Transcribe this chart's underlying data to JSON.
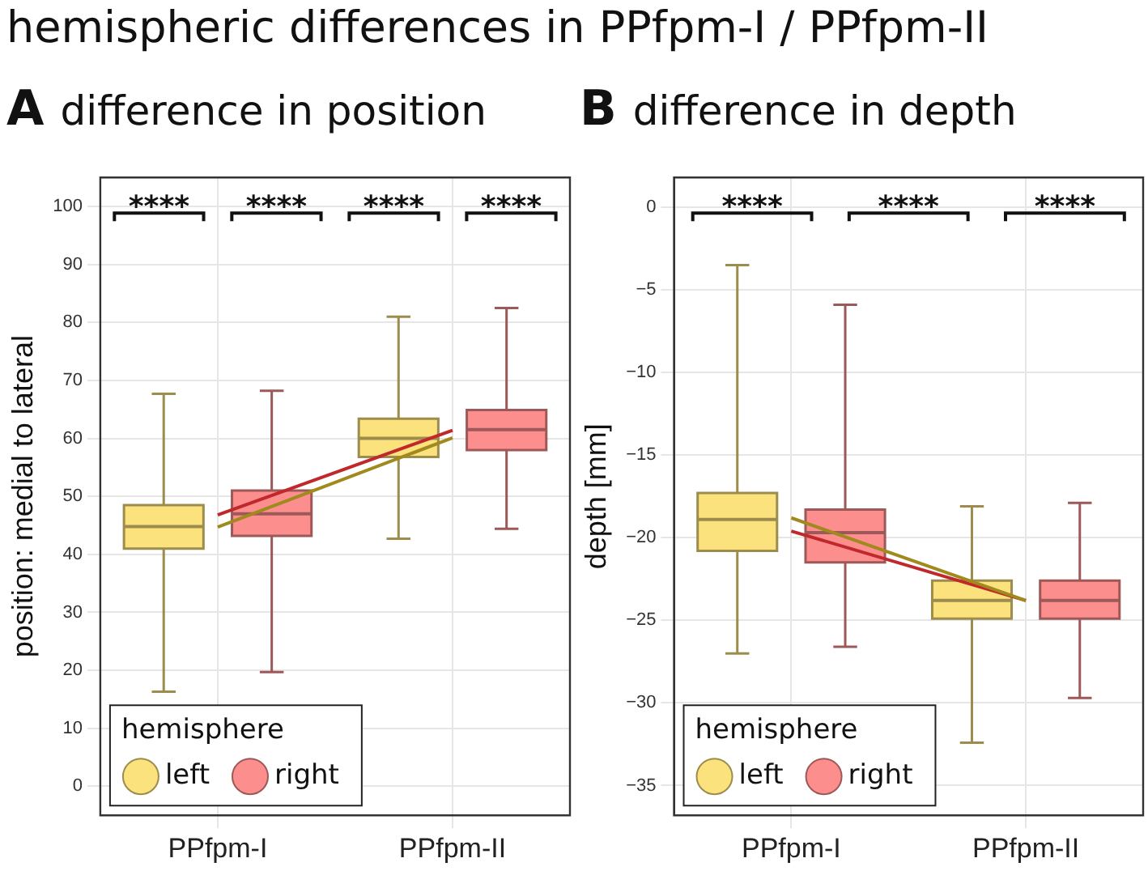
{
  "chart_data": [
    {
      "type": "box",
      "title": "difference in position",
      "ylabel": "position: medial to lateral",
      "legend_title": "hemisphere",
      "categories": [
        "PPfpm-I",
        "PPfpm-II"
      ],
      "series": [
        {
          "name": "left",
          "color": "#fbe27c",
          "boxes": [
            {
              "low": 16.3,
              "q1": 41,
              "median": 44.8,
              "q3": 48.5,
              "high": 67.7
            },
            {
              "low": 42.7,
              "q1": 56.8,
              "median": 60,
              "q3": 63.4,
              "high": 81
            }
          ]
        },
        {
          "name": "right",
          "color": "#fd8e8e",
          "boxes": [
            {
              "low": 19.7,
              "q1": 43.2,
              "median": 47,
              "q3": 51,
              "high": 68.2
            },
            {
              "low": 44.4,
              "q1": 58,
              "median": 61.5,
              "q3": 64.9,
              "high": 82.5
            }
          ]
        },
        {
          "type": "line",
          "color": "#a08a1e",
          "values": [
            44.7,
            60.1
          ]
        },
        {
          "type": "line",
          "color": "#c0282c",
          "values": [
            46.8,
            61.4
          ]
        }
      ],
      "ylim": [
        -5,
        105
      ],
      "yticks": [
        0,
        10,
        20,
        30,
        40,
        50,
        60,
        70,
        80,
        90,
        100
      ],
      "grid": true,
      "legend": "bottom left",
      "marker": "none",
      "annotations": [
        "hemispheric differences in PPfpm-I / PPfpm-II",
        "A",
        "****",
        "****",
        "****",
        "****"
      ]
    },
    {
      "type": "box",
      "title": "difference in depth",
      "ylabel": "depth [mm]",
      "legend_title": "hemisphere",
      "categories": [
        "PPfpm-I",
        "PPfpm-II"
      ],
      "series": [
        {
          "name": "left",
          "color": "#fbe27c",
          "boxes": [
            {
              "low": -27,
              "q1": -20.8,
              "median": -18.9,
              "q3": -17.3,
              "high": -3.5
            },
            {
              "low": -32.4,
              "q1": -24.9,
              "median": -23.8,
              "q3": -22.6,
              "high": -18.1
            }
          ]
        },
        {
          "name": "right",
          "color": "#fd8e8e",
          "boxes": [
            {
              "low": -26.6,
              "q1": -21.5,
              "median": -19.7,
              "q3": -18.3,
              "high": -5.9
            },
            {
              "low": -29.7,
              "q1": -24.9,
              "median": -23.8,
              "q3": -22.6,
              "high": -17.9
            }
          ]
        },
        {
          "type": "line",
          "color": "#a08a1e",
          "values": [
            -18.8,
            -23.8
          ]
        },
        {
          "type": "line",
          "color": "#c0282c",
          "values": [
            -19.6,
            -23.8
          ]
        }
      ],
      "ylim": [
        -36.8,
        1.8
      ],
      "yticks": [
        0,
        -5,
        -10,
        -15,
        -20,
        -25,
        -30,
        -35
      ],
      "grid": true,
      "legend": "bottom left",
      "marker": "none",
      "annotations": [
        "B",
        "****",
        "****",
        "****"
      ]
    }
  ]
}
